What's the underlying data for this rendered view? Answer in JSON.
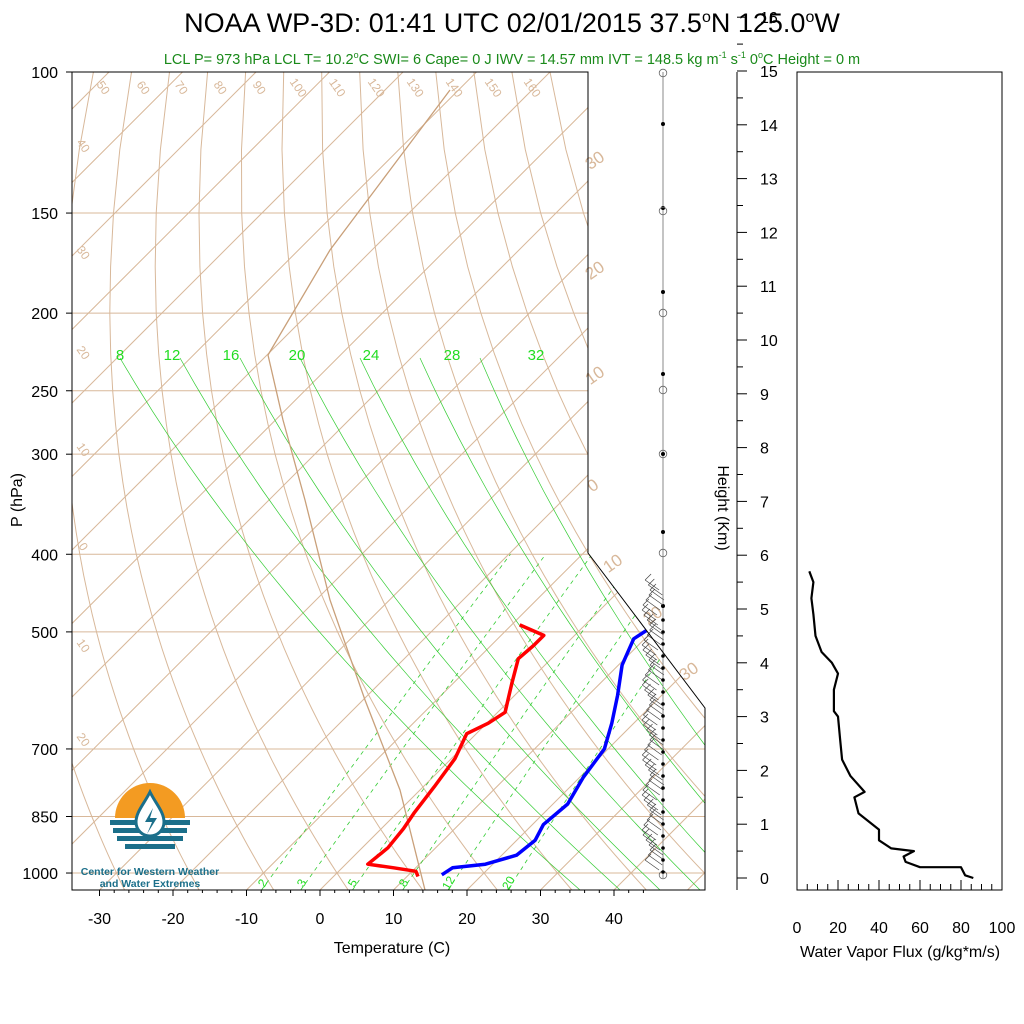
{
  "title_main": "NOAA WP-3D: 01:41 UTC 02/01/2015  37.5",
  "title_lat_sup": "o",
  "title_mid": "N 125.0",
  "title_lon_sup": "o",
  "title_end": "W",
  "subtitle": {
    "part1": "LCL P= 973 hPa  LCL T= 10.2",
    "deg1": "o",
    "part2": "C  SWI= 6  Cape= 0 J  IWV = 14.57 mm  IVT = 148.5 kg m",
    "sup1": "-1",
    "part3": " s",
    "sup2": "-1",
    "part4": "  0",
    "deg2": "o",
    "part5": "C Height = 0 m"
  },
  "logo_text_line1": "Center for Western Weather",
  "logo_text_line2": "and Water Extremes",
  "colors": {
    "temperature": "#ff0000",
    "dewpoint": "#0000ff",
    "isotherm": "#d8b89a",
    "mixing_ratio": "#33cc33",
    "title_green": "#1a8a1a",
    "logo_orange": "#f39b22",
    "logo_teal": "#1b6f8a"
  },
  "chart_data": [
    {
      "type": "line",
      "name": "skew-t",
      "xlabel": "Temperature (C)",
      "ylabel": "P (hPa)",
      "x_ticks": [
        "-30",
        "-20",
        "-10",
        "0",
        "10",
        "20",
        "30",
        "40"
      ],
      "y_ticks": [
        [
          "100",
          100
        ],
        [
          "150",
          150
        ],
        [
          "200",
          200
        ],
        [
          "250",
          250
        ],
        [
          "300",
          300
        ],
        [
          "400",
          400
        ],
        [
          "500",
          500
        ],
        [
          "700",
          700
        ],
        [
          "850",
          850
        ],
        [
          "1000",
          1000
        ]
      ],
      "xlim": [
        -34,
        50
      ],
      "ylim": [
        1050,
        100
      ],
      "y_scale": "log",
      "isotherm_labels": [
        "50",
        "60",
        "70",
        "80",
        "90",
        "100",
        "110",
        "120",
        "130",
        "140",
        "150",
        "160",
        "40",
        "30",
        "20",
        "10",
        "0",
        "10",
        "20",
        "30",
        "20",
        "10",
        "0",
        "10",
        "20",
        "30"
      ],
      "mixing_ratio_labels_top": [
        "8",
        "12",
        "16",
        "20",
        "24",
        "28",
        "32"
      ],
      "mixing_ratio_labels_bottom": [
        "2",
        "3",
        "5",
        "8",
        "12",
        "20"
      ],
      "series": [
        {
          "name": "temperature",
          "points": [
            [
              -8.9,
              490
            ],
            [
              -4.2,
              505
            ],
            [
              -4.2,
              520
            ],
            [
              -4.5,
              540
            ],
            [
              -2,
              580
            ],
            [
              1,
              630
            ],
            [
              0.2,
              650
            ],
            [
              -1.3,
              670
            ],
            [
              0.5,
              720
            ],
            [
              1.5,
              780
            ],
            [
              2.3,
              840
            ],
            [
              3,
              880
            ],
            [
              3.5,
              930
            ],
            [
              3,
              975
            ],
            [
              7,
              985
            ],
            [
              10.5,
              995
            ],
            [
              11.5,
              1010
            ]
          ]
        },
        {
          "name": "dewpoint",
          "points": [
            [
              9.5,
              490
            ],
            [
              8.5,
              510
            ],
            [
              10.5,
              550
            ],
            [
              14,
              600
            ],
            [
              17,
              650
            ],
            [
              19.5,
              700
            ],
            [
              20.5,
              760
            ],
            [
              22,
              820
            ],
            [
              21.5,
              870
            ],
            [
              22.5,
              910
            ],
            [
              22,
              950
            ],
            [
              19,
              975
            ],
            [
              15,
              985
            ],
            [
              14.5,
              1005
            ]
          ]
        }
      ]
    },
    {
      "type": "line",
      "name": "water-vapor-flux",
      "xlabel": "Water Vapor Flux (g/kg*m/s)",
      "ylabel": "Height (Km)",
      "x_ticks": [
        "0",
        "20",
        "40",
        "60",
        "80",
        "100"
      ],
      "y_ticks": [
        "0",
        "1",
        "2",
        "3",
        "4",
        "5",
        "6",
        "7",
        "8",
        "9",
        "10",
        "11",
        "12",
        "13",
        "14",
        "15",
        "16"
      ],
      "xlim": [
        0,
        100
      ],
      "ylim": [
        0,
        16.3
      ],
      "series": [
        {
          "name": "flux",
          "points": [
            [
              86,
              0
            ],
            [
              82,
              0.05
            ],
            [
              80,
              0.2
            ],
            [
              60,
              0.2
            ],
            [
              53,
              0.3
            ],
            [
              52,
              0.4
            ],
            [
              57,
              0.5
            ],
            [
              46,
              0.55
            ],
            [
              40,
              0.7
            ],
            [
              40,
              0.9
            ],
            [
              30,
              1.2
            ],
            [
              28,
              1.5
            ],
            [
              33,
              1.6
            ],
            [
              26,
              1.9
            ],
            [
              22,
              2.2
            ],
            [
              21,
              2.6
            ],
            [
              20,
              3
            ],
            [
              18,
              3.1
            ],
            [
              18,
              3.5
            ],
            [
              20,
              3.8
            ],
            [
              17,
              4.0
            ],
            [
              12,
              4.2
            ],
            [
              9,
              4.5
            ],
            [
              8,
              4.9
            ],
            [
              7,
              5.2
            ],
            [
              8,
              5.5
            ],
            [
              6,
              5.7
            ]
          ]
        }
      ]
    }
  ]
}
